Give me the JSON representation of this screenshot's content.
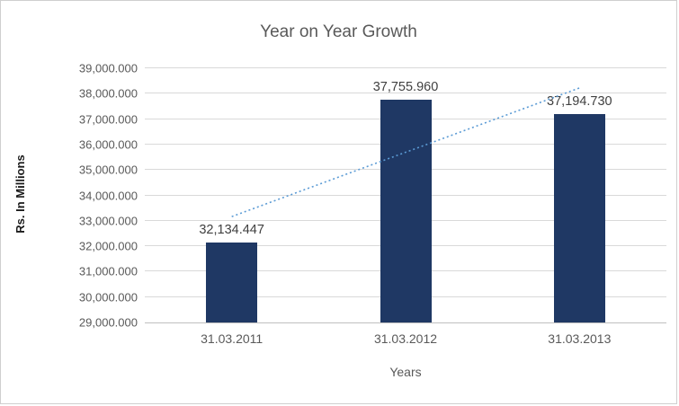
{
  "chart_data": {
    "type": "bar",
    "title": "Year on Year Growth",
    "xlabel": "Years",
    "ylabel": "Rs. In Millions",
    "categories": [
      "31.03.2011",
      "31.03.2012",
      "31.03.2013"
    ],
    "values": [
      32134.447,
      37755.96,
      37194.73
    ],
    "value_labels": [
      "32,134.447",
      "37,755.960",
      "37,194.730"
    ],
    "ylim": [
      29000,
      39000
    ],
    "ytick_step": 1000,
    "ytick_labels": [
      "29,000.000",
      "30,000.000",
      "31,000.000",
      "32,000.000",
      "33,000.000",
      "34,000.000",
      "35,000.000",
      "36,000.000",
      "37,000.000",
      "38,000.000",
      "39,000.000"
    ],
    "grid": true,
    "legend": "none",
    "bar_color": "#1F3864",
    "trendline": {
      "show": true,
      "kind": "linear",
      "style": "dotted",
      "color": "#5B9BD5"
    }
  }
}
